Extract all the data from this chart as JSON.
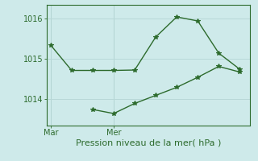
{
  "line1_x": [
    0,
    1,
    2,
    3,
    4,
    5,
    6,
    7,
    8,
    9
  ],
  "line1_y": [
    1015.35,
    1014.72,
    1014.72,
    1014.72,
    1014.73,
    1015.55,
    1016.05,
    1015.95,
    1015.15,
    1014.75
  ],
  "line2_x": [
    2,
    3,
    4,
    5,
    6,
    7,
    8,
    9
  ],
  "line2_y": [
    1013.75,
    1013.65,
    1013.9,
    1014.1,
    1014.3,
    1014.55,
    1014.82,
    1014.68
  ],
  "color": "#2d6b2d",
  "bg_color": "#ceeaea",
  "grid_color": "#b8d8d8",
  "xlabel": "Pression niveau de la mer( hPa )",
  "xtick_labels": [
    "Mar",
    "Mer"
  ],
  "xtick_positions": [
    0,
    3
  ],
  "ytick_labels": [
    "1014",
    "1015",
    "1016"
  ],
  "ytick_values": [
    1014,
    1015,
    1016
  ],
  "ylim": [
    1013.35,
    1016.35
  ],
  "xlim": [
    -0.2,
    9.5
  ],
  "marker": "*",
  "markersize": 4,
  "linewidth": 1.0,
  "xlabel_fontsize": 8,
  "tick_fontsize": 7,
  "vline_x": [
    0,
    3
  ]
}
